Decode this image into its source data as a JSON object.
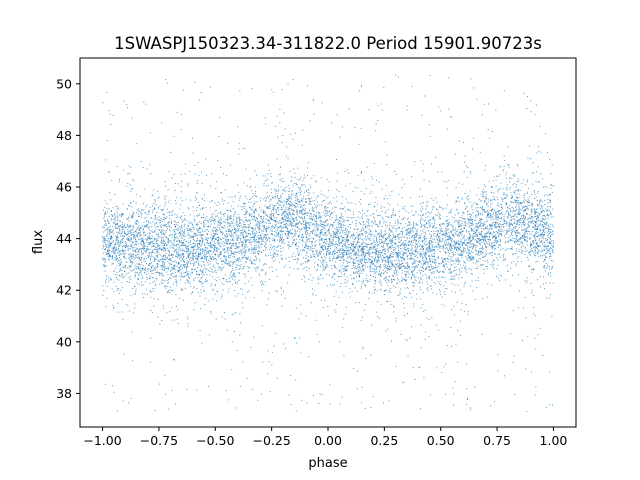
{
  "chart_data": {
    "type": "scatter",
    "title": "1SWASPJ150323.34-311822.0 Period 15901.90723s",
    "xlabel": "phase",
    "ylabel": "flux",
    "xlim": [
      -1.1,
      1.1
    ],
    "ylim": [
      36.7,
      51.0
    ],
    "xticks": [
      -1.0,
      -0.75,
      -0.5,
      -0.25,
      0.0,
      0.25,
      0.5,
      0.75,
      1.0
    ],
    "xtick_labels": [
      "−1.00",
      "−0.75",
      "−0.50",
      "−0.25",
      "0.00",
      "0.25",
      "0.50",
      "0.75",
      "1.00"
    ],
    "yticks": [
      38,
      40,
      42,
      44,
      46,
      48,
      50
    ],
    "ytick_labels": [
      "38",
      "40",
      "42",
      "44",
      "46",
      "48",
      "50"
    ],
    "grid": false,
    "legend": "none",
    "marker_color": "#1f77b4",
    "phase_range": [
      -1.0,
      1.0
    ],
    "flux_range_of_points": [
      37.3,
      50.4
    ],
    "light_curve_trend": {
      "phase": [
        -1.0,
        -0.9,
        -0.8,
        -0.7,
        -0.6,
        -0.5,
        -0.4,
        -0.3,
        -0.2,
        -0.1,
        0.0,
        0.1,
        0.2,
        0.3,
        0.4,
        0.5,
        0.6,
        0.7,
        0.8,
        0.9,
        1.0
      ],
      "flux": [
        43.9,
        43.8,
        43.7,
        43.6,
        43.6,
        43.7,
        43.9,
        44.3,
        44.8,
        44.5,
        44.0,
        43.7,
        43.5,
        43.5,
        43.6,
        43.7,
        43.9,
        44.3,
        44.8,
        44.5,
        44.1
      ]
    }
  }
}
